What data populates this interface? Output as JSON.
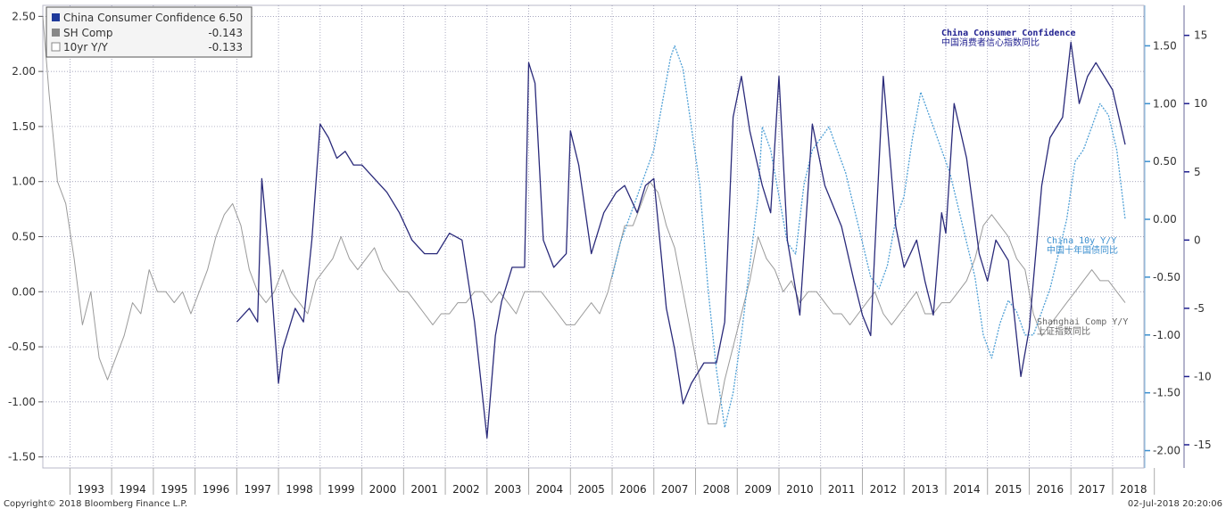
{
  "colors": {
    "confidence": "#2a2a7a",
    "sh_comp": "#9a9a9a",
    "bond_10y": "#4fa0d6",
    "grid": "#8a8aa8"
  },
  "legend": {
    "items": [
      {
        "label": "China Consumer Confidence",
        "value": "6.50",
        "swatch": "#1f3a9a"
      },
      {
        "label": "SH Comp",
        "value": "-0.143",
        "swatch": "#888888"
      },
      {
        "label": "10yr Y/Y",
        "value": "-0.133",
        "swatch": "#ffffff"
      }
    ]
  },
  "annotations": {
    "confidence": [
      "China Consumer Confidence",
      "中国消费者信心指数同比"
    ],
    "bond": [
      "China 10y Y/Y",
      "中国十年国债同比"
    ],
    "shcomp": [
      "Shanghai Comp Y/Y",
      "上证指数同比"
    ]
  },
  "footer": {
    "left": "Copyright© 2018 Bloomberg Finance L.P.",
    "right": "02-Jul-2018 20:20:06"
  },
  "chart_data": {
    "type": "line",
    "x_unit": "year",
    "xlim": [
      1992.35,
      2018.75
    ],
    "x_tick_labels": [
      "1993",
      "1994",
      "1995",
      "1996",
      "1997",
      "1998",
      "1999",
      "2000",
      "2001",
      "2002",
      "2003",
      "2004",
      "2005",
      "2006",
      "2007",
      "2008",
      "2009",
      "2010",
      "2011",
      "2012",
      "2013",
      "2014",
      "2015",
      "2016",
      "2017",
      "2018"
    ],
    "left_axis": {
      "ticks": [
        "2.50",
        "2.00",
        "1.50",
        "1.00",
        "0.50",
        "0.00",
        "-0.50",
        "-1.00",
        "-1.50"
      ],
      "ylim": [
        -1.6,
        2.6
      ]
    },
    "mid_axis": {
      "ticks": [
        "1.50",
        "1.00",
        "0.50",
        "0.00",
        "-0.50",
        "-1.00",
        "-1.50",
        "-2.00"
      ],
      "ylim": [
        -2.15,
        1.85
      ]
    },
    "right_axis": {
      "ticks": [
        "15",
        "10",
        "5",
        "0",
        "-5",
        "-10",
        "-15"
      ],
      "ylim": [
        -16.7,
        17.2
      ]
    },
    "series": [
      {
        "name": "China Consumer Confidence",
        "axis": "right",
        "x": [
          1997.0,
          1997.3,
          1997.5,
          1997.6,
          1997.8,
          1998.0,
          1998.1,
          1998.4,
          1998.6,
          1998.8,
          1999.0,
          1999.2,
          1999.4,
          1999.6,
          1999.8,
          2000.0,
          2000.3,
          2000.6,
          2000.9,
          2001.2,
          2001.5,
          2001.8,
          2002.1,
          2002.4,
          2002.7,
          2003.0,
          2003.2,
          2003.35,
          2003.6,
          2003.9,
          2004.0,
          2004.15,
          2004.35,
          2004.6,
          2004.9,
          2005.0,
          2005.2,
          2005.5,
          2005.8,
          2006.1,
          2006.3,
          2006.6,
          2006.8,
          2007.0,
          2007.3,
          2007.5,
          2007.7,
          2007.9,
          2008.2,
          2008.5,
          2008.7,
          2008.9,
          2009.1,
          2009.3,
          2009.6,
          2009.8,
          2010.0,
          2010.2,
          2010.5,
          2010.8,
          2011.1,
          2011.5,
          2011.8,
          2012.0,
          2012.2,
          2012.5,
          2012.8,
          2013.0,
          2013.3,
          2013.5,
          2013.7,
          2013.9,
          2014.0,
          2014.2,
          2014.5,
          2014.8,
          2015.0,
          2015.2,
          2015.5,
          2015.8,
          2016.0,
          2016.1,
          2016.3,
          2016.5,
          2016.8,
          2017.0,
          2017.2,
          2017.4,
          2017.6,
          2017.8,
          2018.0,
          2018.3
        ],
        "y": [
          -6.0,
          -5.0,
          -6.0,
          4.5,
          -2.0,
          -10.5,
          -8.0,
          -5.0,
          -6.0,
          0.0,
          8.5,
          7.5,
          6.0,
          6.5,
          5.5,
          5.5,
          4.5,
          3.5,
          2.0,
          0.0,
          -1.0,
          -1.0,
          0.5,
          0.0,
          -6.0,
          -14.5,
          -7.0,
          -4.5,
          -2.0,
          -2.0,
          13.0,
          11.5,
          0.0,
          -2.0,
          -1.0,
          8.0,
          5.5,
          -1.0,
          2.0,
          3.5,
          4.0,
          2.0,
          4.0,
          4.5,
          -5.0,
          -8.0,
          -12.0,
          -10.5,
          -9.0,
          -9.0,
          -6.0,
          9.0,
          12.0,
          8.0,
          4.0,
          2.0,
          12.0,
          0.0,
          -5.5,
          8.5,
          4.0,
          1.0,
          -3.0,
          -5.5,
          -7.0,
          12.0,
          1.0,
          -2.0,
          0.0,
          -3.0,
          -5.5,
          2.0,
          0.5,
          10.0,
          6.0,
          -1.0,
          -3.0,
          0.0,
          -1.5,
          -10.0,
          -6.5,
          -3.0,
          4.0,
          7.5,
          9.0,
          14.5,
          10.0,
          12.0,
          13.0,
          12.0,
          11.0,
          7.0
        ]
      },
      {
        "name": "SH Comp",
        "axis": "left",
        "x": [
          1992.35,
          1992.5,
          1992.7,
          1992.9,
          1993.1,
          1993.3,
          1993.5,
          1993.7,
          1993.9,
          1994.1,
          1994.3,
          1994.5,
          1994.7,
          1994.9,
          1995.1,
          1995.3,
          1995.5,
          1995.7,
          1995.9,
          1996.1,
          1996.3,
          1996.5,
          1996.7,
          1996.9,
          1997.1,
          1997.3,
          1997.5,
          1997.7,
          1997.9,
          1998.1,
          1998.3,
          1998.5,
          1998.7,
          1998.9,
          1999.1,
          1999.3,
          1999.5,
          1999.7,
          1999.9,
          2000.1,
          2000.3,
          2000.5,
          2000.7,
          2000.9,
          2001.1,
          2001.3,
          2001.5,
          2001.7,
          2001.9,
          2002.1,
          2002.3,
          2002.5,
          2002.7,
          2002.9,
          2003.1,
          2003.3,
          2003.5,
          2003.7,
          2003.9,
          2004.1,
          2004.3,
          2004.5,
          2004.7,
          2004.9,
          2005.1,
          2005.3,
          2005.5,
          2005.7,
          2005.9,
          2006.1,
          2006.3,
          2006.5,
          2006.7,
          2006.9,
          2007.1,
          2007.3,
          2007.5,
          2007.7,
          2007.9,
          2008.1,
          2008.3,
          2008.5,
          2008.7,
          2008.9,
          2009.1,
          2009.3,
          2009.5,
          2009.7,
          2009.9,
          2010.1,
          2010.3,
          2010.5,
          2010.7,
          2010.9,
          2011.1,
          2011.3,
          2011.5,
          2011.7,
          2011.9,
          2012.1,
          2012.3,
          2012.5,
          2012.7,
          2012.9,
          2013.1,
          2013.3,
          2013.5,
          2013.7,
          2013.9,
          2014.1,
          2014.3,
          2014.5,
          2014.7,
          2014.9,
          2015.1,
          2015.3,
          2015.5,
          2015.7,
          2015.9,
          2016.1,
          2016.3,
          2016.5,
          2016.7,
          2016.9,
          2017.1,
          2017.3,
          2017.5,
          2017.7,
          2017.9,
          2018.1,
          2018.3
        ],
        "y": [
          2.5,
          1.8,
          1.0,
          0.8,
          0.3,
          -0.3,
          0.0,
          -0.6,
          -0.8,
          -0.6,
          -0.4,
          -0.1,
          -0.2,
          0.2,
          0.0,
          0.0,
          -0.1,
          0.0,
          -0.2,
          0.0,
          0.2,
          0.5,
          0.7,
          0.8,
          0.6,
          0.2,
          0.0,
          -0.1,
          0.0,
          0.2,
          0.0,
          -0.1,
          -0.2,
          0.1,
          0.2,
          0.3,
          0.5,
          0.3,
          0.2,
          0.3,
          0.4,
          0.2,
          0.1,
          0.0,
          0.0,
          -0.1,
          -0.2,
          -0.3,
          -0.2,
          -0.2,
          -0.1,
          -0.1,
          0.0,
          0.0,
          -0.1,
          0.0,
          -0.1,
          -0.2,
          0.0,
          0.0,
          0.0,
          -0.1,
          -0.2,
          -0.3,
          -0.3,
          -0.2,
          -0.1,
          -0.2,
          0.0,
          0.3,
          0.6,
          0.6,
          0.8,
          1.0,
          0.9,
          0.6,
          0.4,
          0.0,
          -0.4,
          -0.8,
          -1.2,
          -1.2,
          -0.8,
          -0.5,
          -0.2,
          0.1,
          0.5,
          0.3,
          0.2,
          0.0,
          0.1,
          -0.1,
          0.0,
          0.0,
          -0.1,
          -0.2,
          -0.2,
          -0.3,
          -0.2,
          -0.1,
          0.0,
          -0.2,
          -0.3,
          -0.2,
          -0.1,
          0.0,
          -0.2,
          -0.2,
          -0.1,
          -0.1,
          0.0,
          0.1,
          0.3,
          0.6,
          0.7,
          0.6,
          0.5,
          0.3,
          0.2,
          -0.2,
          -0.4,
          -0.3,
          -0.2,
          -0.1,
          0.0,
          0.1,
          0.2,
          0.1,
          0.1,
          0.0,
          -0.1
        ]
      },
      {
        "name": "10yr Y/Y",
        "axis": "mid",
        "x": [
          2006.0,
          2006.2,
          2006.4,
          2006.6,
          2006.8,
          2007.0,
          2007.2,
          2007.4,
          2007.5,
          2007.7,
          2007.9,
          2008.1,
          2008.3,
          2008.5,
          2008.7,
          2008.9,
          2009.1,
          2009.3,
          2009.5,
          2009.6,
          2009.8,
          2010.0,
          2010.2,
          2010.4,
          2010.6,
          2010.8,
          2011.0,
          2011.2,
          2011.4,
          2011.6,
          2011.8,
          2012.0,
          2012.2,
          2012.4,
          2012.6,
          2012.8,
          2013.0,
          2013.2,
          2013.4,
          2013.5,
          2013.7,
          2013.9,
          2014.1,
          2014.3,
          2014.5,
          2014.7,
          2014.9,
          2015.1,
          2015.3,
          2015.5,
          2015.7,
          2015.9,
          2016.1,
          2016.3,
          2016.5,
          2016.7,
          2016.9,
          2017.1,
          2017.3,
          2017.5,
          2017.7,
          2017.9,
          2018.1,
          2018.3
        ],
        "y": [
          -0.5,
          -0.2,
          0.0,
          0.2,
          0.4,
          0.6,
          1.0,
          1.4,
          1.5,
          1.3,
          0.8,
          0.3,
          -0.6,
          -1.3,
          -1.8,
          -1.5,
          -1.0,
          -0.4,
          0.2,
          0.8,
          0.6,
          0.2,
          -0.2,
          -0.3,
          0.3,
          0.6,
          0.7,
          0.8,
          0.6,
          0.4,
          0.1,
          -0.2,
          -0.5,
          -0.6,
          -0.4,
          0.0,
          0.2,
          0.7,
          1.1,
          1.0,
          0.8,
          0.6,
          0.4,
          0.1,
          -0.2,
          -0.5,
          -1.0,
          -1.2,
          -0.9,
          -0.7,
          -0.8,
          -1.0,
          -1.0,
          -0.8,
          -0.6,
          -0.3,
          0.0,
          0.5,
          0.6,
          0.8,
          1.0,
          0.9,
          0.6,
          0.0
        ]
      }
    ]
  }
}
